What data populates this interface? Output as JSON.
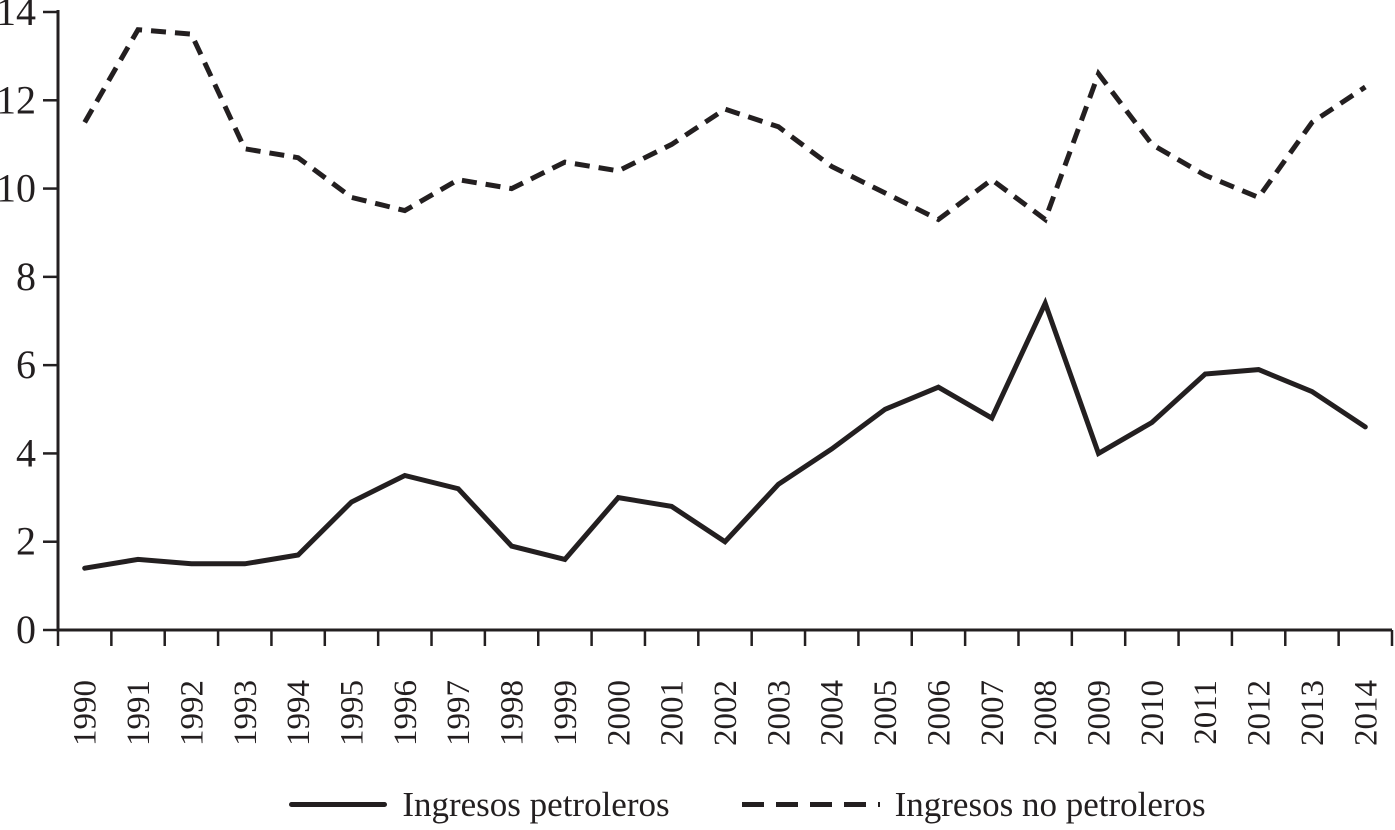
{
  "chart_data": {
    "type": "line",
    "title": "",
    "xlabel": "",
    "ylabel": "",
    "categories": [
      "1990",
      "1991",
      "1992",
      "1993",
      "1994",
      "1995",
      "1996",
      "1997",
      "1998",
      "1999",
      "2000",
      "2001",
      "2002",
      "2003",
      "2004",
      "2005",
      "2006",
      "2007",
      "2008",
      "2009",
      "2010",
      "2011",
      "2012",
      "2013",
      "2014"
    ],
    "series": [
      {
        "name": "Ingresos petroleros",
        "line_style": "solid",
        "values": [
          1.4,
          1.6,
          1.5,
          1.5,
          1.7,
          2.9,
          3.5,
          3.2,
          1.9,
          1.6,
          3.0,
          2.8,
          2.0,
          3.3,
          4.1,
          5.0,
          5.5,
          4.8,
          7.4,
          4.0,
          4.7,
          5.8,
          5.9,
          5.4,
          4.6
        ]
      },
      {
        "name": "Ingresos no petroleros",
        "line_style": "dashed",
        "values": [
          11.5,
          13.6,
          13.5,
          10.9,
          10.7,
          9.8,
          9.5,
          10.2,
          10.0,
          10.6,
          10.4,
          11.0,
          11.8,
          11.4,
          10.5,
          9.9,
          9.3,
          10.2,
          9.3,
          12.6,
          11.0,
          10.3,
          9.8,
          11.5,
          12.3
        ]
      }
    ],
    "ylim": [
      0,
      14
    ],
    "ytick_step": 2,
    "grid": false,
    "legend_position": "bottom",
    "line_color": "#231f20",
    "background_color": "#ffffff"
  }
}
